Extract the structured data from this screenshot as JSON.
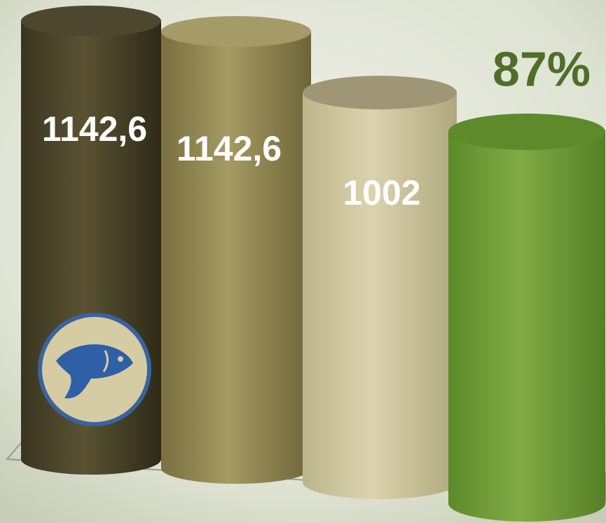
{
  "cylinders": [
    {
      "label": "1142,6"
    },
    {
      "label": "1142,6"
    },
    {
      "label": "1002"
    },
    {
      "label": "87%"
    }
  ]
}
